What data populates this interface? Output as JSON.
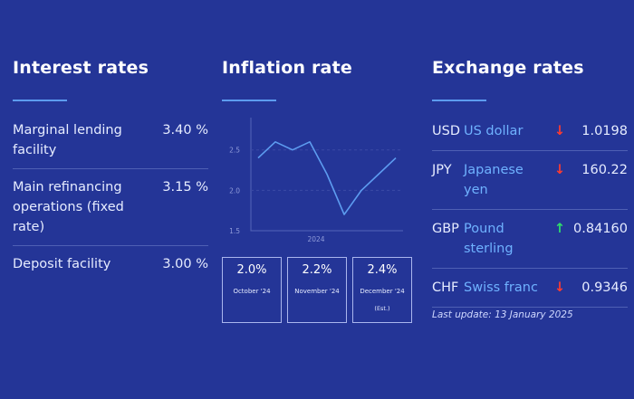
{
  "interest": {
    "title": "Interest rates",
    "rows": [
      {
        "label": "Marginal lending facility",
        "value": "3.40 %"
      },
      {
        "label": "Main refinancing operations (fixed rate)",
        "value": "3.15 %"
      },
      {
        "label": "Deposit facility",
        "value": "3.00 %"
      }
    ]
  },
  "inflation": {
    "title": "Inflation rate",
    "cards": [
      {
        "value": "2.0%",
        "month": "October '24",
        "note": ""
      },
      {
        "value": "2.2%",
        "month": "November '24",
        "note": ""
      },
      {
        "value": "2.4%",
        "month": "December '24",
        "note": "(Est.)"
      }
    ]
  },
  "chart_data": {
    "type": "line",
    "x": [
      1,
      2,
      3,
      4,
      5,
      6,
      7,
      8,
      9
    ],
    "values": [
      2.4,
      2.6,
      2.5,
      2.6,
      2.2,
      1.7,
      2.0,
      2.2,
      2.4
    ],
    "xlabel": "2024",
    "yticks": [
      "2.5",
      "2.0",
      "1.5"
    ],
    "ylim": [
      1.5,
      2.9
    ],
    "grid": true,
    "color": "#5d9cf0"
  },
  "exchange": {
    "title": "Exchange rates",
    "rows": [
      {
        "code": "USD",
        "name": "US dollar",
        "trend": "down",
        "arrow": "↓",
        "value": "1.0198"
      },
      {
        "code": "JPY",
        "name": "Japanese yen",
        "trend": "down",
        "arrow": "↓",
        "value": "160.22"
      },
      {
        "code": "GBP",
        "name": "Pound sterling",
        "trend": "up",
        "arrow": "↑",
        "value": "0.84160"
      },
      {
        "code": "CHF",
        "name": "Swiss franc",
        "trend": "down",
        "arrow": "↓",
        "value": "0.9346"
      }
    ],
    "last_update": "Last update: 13 January 2025"
  },
  "colors": {
    "background": "#243597",
    "accent": "#5d9cf0",
    "link": "#6fb2ff",
    "down": "#ff3b30",
    "up": "#2ee06b"
  }
}
